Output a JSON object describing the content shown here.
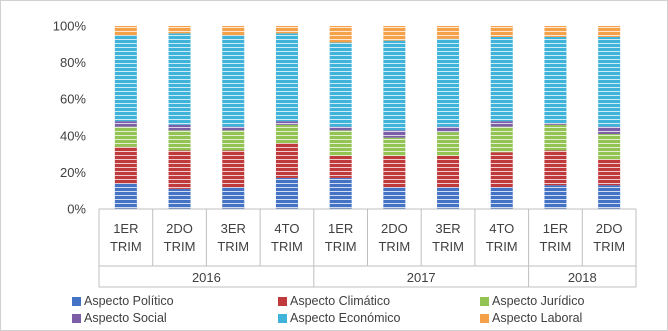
{
  "chart_data": {
    "type": "bar",
    "stacked": true,
    "percent": true,
    "ylim": [
      0,
      100
    ],
    "ytick_labels": [
      "0%",
      "20%",
      "40%",
      "60%",
      "80%",
      "100%"
    ],
    "yticks": [
      0,
      20,
      40,
      60,
      80,
      100
    ],
    "grid": false,
    "legend_position": "bottom",
    "categories": [
      [
        "1ER",
        "TRIM"
      ],
      [
        "2DO",
        "TRIM"
      ],
      [
        "3ER",
        "TRIM"
      ],
      [
        "4TO",
        "TRIM"
      ],
      [
        "1ER",
        "TRIM"
      ],
      [
        "2DO",
        "TRIM"
      ],
      [
        "3ER",
        "TRIM"
      ],
      [
        "4TO",
        "TRIM"
      ],
      [
        "1ER",
        "TRIM"
      ],
      [
        "2DO",
        "TRIM"
      ]
    ],
    "groups": [
      {
        "label": "2016",
        "start": 0,
        "count": 4
      },
      {
        "label": "2017",
        "start": 4,
        "count": 4
      },
      {
        "label": "2018",
        "start": 8,
        "count": 2
      }
    ],
    "series": [
      {
        "name": "Aspecto Político",
        "color": "#4472c4",
        "values": [
          14,
          11,
          12,
          17,
          17,
          12,
          12,
          12,
          13,
          13
        ]
      },
      {
        "name": "Aspecto Climático",
        "color": "#c0393b",
        "values": [
          20,
          21,
          20,
          19,
          12,
          17,
          17,
          19,
          19,
          14
        ]
      },
      {
        "name": "Aspecto Jurídico",
        "color": "#92c353",
        "values": [
          11,
          11,
          11,
          10,
          14,
          10,
          13,
          14,
          14,
          14
        ]
      },
      {
        "name": "Aspecto Social",
        "color": "#7b5ea7",
        "values": [
          3,
          3,
          2,
          2,
          2,
          4,
          3,
          3,
          1,
          4
        ]
      },
      {
        "name": "Aspecto Económico",
        "color": "#3fb3d9",
        "values": [
          47,
          50,
          50,
          48,
          46,
          49,
          48,
          46,
          47,
          49
        ]
      },
      {
        "name": "Aspecto Laboral",
        "color": "#f4a14a",
        "values": [
          5,
          4,
          5,
          4,
          9,
          8,
          7,
          6,
          6,
          6
        ]
      }
    ]
  }
}
